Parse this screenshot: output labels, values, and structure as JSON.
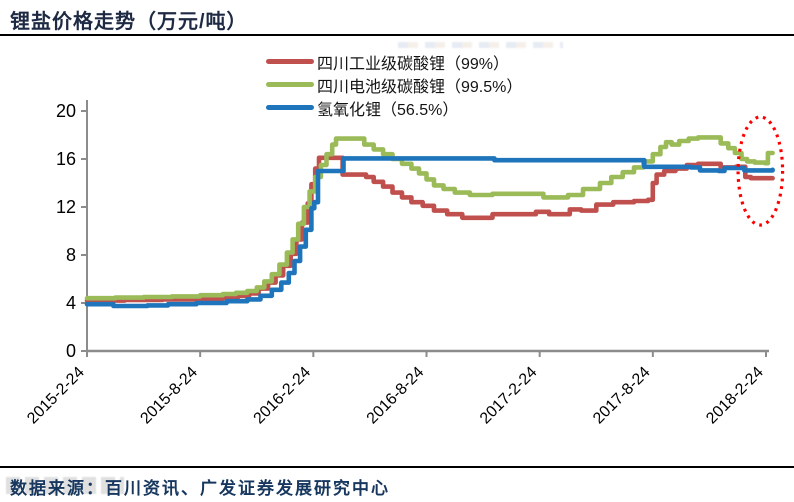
{
  "header": {
    "title": "锂盐价格走势（万元/吨）"
  },
  "legend": [
    {
      "label": "四川工业级碳酸锂（99%）",
      "color": "#C0504D"
    },
    {
      "label": "四川电池级碳酸锂（99.5%）",
      "color": "#9BBB59"
    },
    {
      "label": "氢氧化锂（56.5%）",
      "color": "#1F75BB"
    }
  ],
  "footer": {
    "source": "数据来源：百川资讯、广发证券发展研究中心"
  },
  "colors": {
    "axis": "#8C8C8C",
    "tick_label": "#000000",
    "title_navy": "#1E2A44",
    "source_navy": "#17375E",
    "annotation_red": "#FF0000"
  },
  "chart_data": {
    "type": "line",
    "title": "锂盐价格走势（万元/吨）",
    "xlabel": "",
    "ylabel": "万元/吨",
    "ylim": [
      0,
      20
    ],
    "y_ticks": [
      0,
      4,
      8,
      12,
      16,
      20
    ],
    "x_unit": "months since 2015-02-24",
    "x_max": 36,
    "x_ticks": [
      {
        "t": 0,
        "label": "2015-2-24"
      },
      {
        "t": 6,
        "label": "2015-8-24"
      },
      {
        "t": 12,
        "label": "2016-2-24"
      },
      {
        "t": 18,
        "label": "2016-8-24"
      },
      {
        "t": 24,
        "label": "2017-2-24"
      },
      {
        "t": 30,
        "label": "2017-8-24"
      },
      {
        "t": 36,
        "label": "2018-2-24"
      }
    ],
    "grid": false,
    "legend_position": "top",
    "line_style": "step",
    "series": [
      {
        "name": "四川工业级碳酸锂（99%）",
        "color": "#C0504D",
        "points": [
          [
            0,
            4.2
          ],
          [
            2,
            4.25
          ],
          [
            4,
            4.3
          ],
          [
            6,
            4.35
          ],
          [
            7.2,
            4.45
          ],
          [
            8.0,
            4.6
          ],
          [
            8.6,
            4.8
          ],
          [
            9.1,
            5.2
          ],
          [
            9.6,
            5.7
          ],
          [
            10.0,
            6.3
          ],
          [
            10.4,
            7.1
          ],
          [
            10.8,
            8.1
          ],
          [
            11.1,
            9.3
          ],
          [
            11.4,
            10.7
          ],
          [
            11.7,
            12.3
          ],
          [
            11.9,
            13.9
          ],
          [
            12.1,
            15.2
          ],
          [
            12.3,
            16.1
          ],
          [
            13.3,
            16.1
          ],
          [
            13.55,
            14.7
          ],
          [
            14.8,
            14.5
          ],
          [
            15.2,
            14.1
          ],
          [
            15.7,
            13.7
          ],
          [
            16.2,
            13.2
          ],
          [
            16.7,
            12.8
          ],
          [
            17.2,
            12.4
          ],
          [
            17.8,
            12.1
          ],
          [
            18.4,
            11.7
          ],
          [
            19.1,
            11.4
          ],
          [
            19.9,
            11.1
          ],
          [
            21.3,
            11.1
          ],
          [
            21.5,
            11.4
          ],
          [
            23.8,
            11.6
          ],
          [
            24.5,
            11.4
          ],
          [
            25.6,
            11.8
          ],
          [
            26.2,
            11.7
          ],
          [
            27.0,
            12.2
          ],
          [
            27.9,
            12.4
          ],
          [
            29.0,
            12.5
          ],
          [
            29.75,
            12.6
          ],
          [
            30.0,
            14.0
          ],
          [
            30.2,
            14.7
          ],
          [
            30.6,
            15.0
          ],
          [
            31.2,
            15.2
          ],
          [
            31.8,
            15.5
          ],
          [
            32.4,
            15.6
          ],
          [
            33.4,
            15.6
          ],
          [
            33.6,
            15.3
          ],
          [
            34.4,
            15.35
          ],
          [
            34.9,
            14.5
          ],
          [
            35.2,
            14.4
          ],
          [
            36.35,
            14.4
          ]
        ]
      },
      {
        "name": "四川电池级碳酸锂（99.5%）",
        "color": "#9BBB59",
        "points": [
          [
            0,
            4.4
          ],
          [
            1.5,
            4.45
          ],
          [
            3,
            4.5
          ],
          [
            4.5,
            4.55
          ],
          [
            6,
            4.65
          ],
          [
            7.2,
            4.75
          ],
          [
            7.9,
            4.85
          ],
          [
            8.5,
            5.0
          ],
          [
            9.0,
            5.3
          ],
          [
            9.4,
            5.8
          ],
          [
            9.8,
            6.4
          ],
          [
            10.2,
            7.2
          ],
          [
            10.6,
            8.2
          ],
          [
            10.9,
            9.3
          ],
          [
            11.2,
            10.6
          ],
          [
            11.5,
            12.0
          ],
          [
            11.8,
            13.3
          ],
          [
            12.1,
            14.5
          ],
          [
            12.4,
            15.5
          ],
          [
            12.7,
            16.4
          ],
          [
            13.0,
            17.2
          ],
          [
            13.2,
            17.7
          ],
          [
            14.4,
            17.7
          ],
          [
            14.7,
            17.2
          ],
          [
            15.2,
            16.8
          ],
          [
            15.7,
            16.4
          ],
          [
            16.2,
            16.0
          ],
          [
            16.7,
            15.6
          ],
          [
            17.2,
            15.2
          ],
          [
            17.6,
            14.8
          ],
          [
            18.0,
            14.3
          ],
          [
            18.4,
            13.8
          ],
          [
            18.9,
            13.5
          ],
          [
            19.5,
            13.2
          ],
          [
            20.3,
            13.0
          ],
          [
            21.5,
            13.1
          ],
          [
            24.2,
            12.8
          ],
          [
            25.5,
            13.0
          ],
          [
            26.3,
            13.5
          ],
          [
            27.2,
            14.0
          ],
          [
            27.8,
            14.5
          ],
          [
            28.4,
            14.9
          ],
          [
            29.0,
            15.3
          ],
          [
            29.5,
            15.8
          ],
          [
            30.0,
            16.4
          ],
          [
            30.4,
            17.0
          ],
          [
            30.7,
            17.4
          ],
          [
            31.0,
            17.2
          ],
          [
            31.4,
            17.5
          ],
          [
            31.9,
            17.7
          ],
          [
            32.4,
            17.8
          ],
          [
            33.3,
            17.8
          ],
          [
            33.6,
            17.3
          ],
          [
            34.0,
            16.9
          ],
          [
            34.35,
            16.5
          ],
          [
            34.7,
            16.0
          ],
          [
            35.0,
            15.8
          ],
          [
            35.4,
            15.7
          ],
          [
            35.95,
            15.65
          ],
          [
            36.1,
            16.5
          ],
          [
            36.35,
            16.5
          ]
        ]
      },
      {
        "name": "氢氧化锂（56.5%）",
        "color": "#1F75BB",
        "points": [
          [
            0,
            3.9
          ],
          [
            1.4,
            3.75
          ],
          [
            3.2,
            3.8
          ],
          [
            4.3,
            3.9
          ],
          [
            5.8,
            4.0
          ],
          [
            7.4,
            4.15
          ],
          [
            8.5,
            4.3
          ],
          [
            9.2,
            4.6
          ],
          [
            9.8,
            5.1
          ],
          [
            10.3,
            5.7
          ],
          [
            10.7,
            6.5
          ],
          [
            11.0,
            7.5
          ],
          [
            11.3,
            8.7
          ],
          [
            11.6,
            10.1
          ],
          [
            11.9,
            11.9
          ],
          [
            12.05,
            12.4
          ],
          [
            12.25,
            15.0
          ],
          [
            13.4,
            15.0
          ],
          [
            13.6,
            16.05
          ],
          [
            21.4,
            16.05
          ],
          [
            21.6,
            15.9
          ],
          [
            29.4,
            15.9
          ],
          [
            29.55,
            15.35
          ],
          [
            32.0,
            15.3
          ],
          [
            32.5,
            15.05
          ],
          [
            33.5,
            15.0
          ],
          [
            33.8,
            15.25
          ],
          [
            34.5,
            15.25
          ],
          [
            34.85,
            15.05
          ],
          [
            36.35,
            15.1
          ]
        ]
      }
    ],
    "annotation": {
      "shape": "ellipse",
      "style": "dotted",
      "color": "#FF0000",
      "t_center": 35.7,
      "v_center": 15.0,
      "t_radius": 1.18,
      "v_radius": 4.5
    }
  }
}
